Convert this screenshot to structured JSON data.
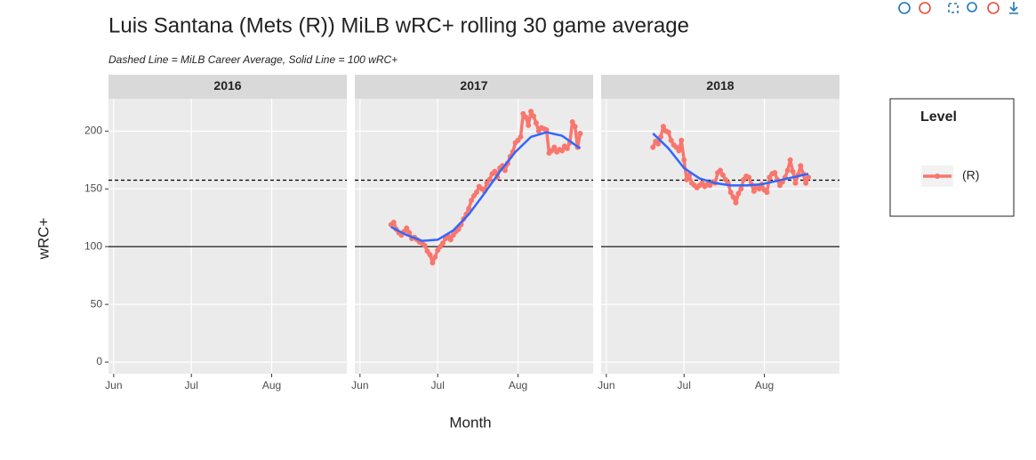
{
  "chart_data": {
    "type": "line",
    "title": "Luis Santana (Mets (R)) MiLB wRC+ rolling 30 game average",
    "subtitle": "Dashed Line = MiLB Career Average, Solid Line = 100 wRC+",
    "x_label": "Month",
    "y_label": "wRC+",
    "xlim": [
      -2,
      90
    ],
    "xticks": [
      {
        "value": 0,
        "label": "Jun"
      },
      {
        "value": 30,
        "label": "Jul"
      },
      {
        "value": 61,
        "label": "Aug"
      }
    ],
    "ylim": [
      -10,
      228
    ],
    "yticks": [
      0,
      50,
      100,
      150,
      200
    ],
    "grid": true,
    "hlines": [
      {
        "value": 157.5,
        "style": "dashed"
      },
      {
        "value": 100,
        "style": "solid"
      }
    ],
    "legend": {
      "title": "Level",
      "position": "right",
      "entries": [
        {
          "name": "(R)",
          "color": "#f8766d"
        }
      ]
    },
    "facets": [
      {
        "label": "2016",
        "series": []
      },
      {
        "label": "2017",
        "series": [
          {
            "color": "#f8766d",
            "points": true,
            "x": [
              12,
              13,
              14,
              15,
              16,
              17,
              18,
              19,
              20,
              21,
              22,
              23,
              24,
              25,
              26,
              27,
              28,
              29,
              30,
              31,
              32,
              33,
              34,
              35,
              36,
              37,
              38,
              39,
              40,
              41,
              42,
              43,
              44,
              45,
              46,
              47,
              48,
              49,
              50,
              51,
              52,
              53,
              54,
              55,
              56,
              57,
              58,
              59,
              60,
              61,
              62,
              63,
              64,
              65,
              66,
              67,
              68,
              69,
              70,
              71,
              72,
              73,
              74,
              75,
              76,
              77,
              78,
              79,
              80,
              81,
              82,
              83,
              84,
              85
            ],
            "values": [
              119,
              121,
              115,
              112,
              110,
              113,
              116,
              112,
              107,
              108,
              106,
              104,
              103,
              101,
              96,
              93,
              86,
              91,
              97,
              100,
              103,
              107,
              109,
              106,
              110,
              113,
              115,
              119,
              124,
              128,
              133,
              140,
              144,
              147,
              152,
              150,
              148,
              155,
              158,
              163,
              165,
              160,
              168,
              170,
              166,
              172,
              178,
              182,
              190,
              192,
              195,
              215,
              212,
              205,
              217,
              213,
              207,
              200,
              203,
              202,
              201,
              181,
              183,
              186,
              182,
              184,
              183,
              187,
              185,
              190,
              208,
              204,
              186,
              198
            ]
          },
          {
            "color": "#3366ff",
            "points": false,
            "x": [
              12,
              18,
              24,
              30,
              36,
              42,
              48,
              54,
              60,
              66,
              72,
              78,
              85
            ],
            "values": [
              117,
              110,
              105,
              106,
              114,
              128,
              146,
              165,
              182,
              195,
              199,
              196,
              185
            ]
          }
        ]
      },
      {
        "label": "2018",
        "series": [
          {
            "color": "#f8766d",
            "points": true,
            "x": [
              18,
              19,
              20,
              21,
              22,
              23,
              24,
              25,
              26,
              27,
              28,
              29,
              30,
              31,
              32,
              33,
              34,
              35,
              36,
              37,
              38,
              39,
              40,
              41,
              42,
              43,
              44,
              45,
              46,
              47,
              48,
              49,
              50,
              51,
              52,
              53,
              54,
              55,
              56,
              57,
              58,
              59,
              60,
              61,
              62,
              63,
              64,
              65,
              66,
              67,
              68,
              69,
              70,
              71,
              72,
              73,
              74,
              75,
              76,
              77,
              78
            ],
            "values": [
              186,
              191,
              189,
              195,
              204,
              200,
              199,
              192,
              188,
              186,
              183,
              192,
              175,
              158,
              162,
              155,
              153,
              151,
              153,
              155,
              152,
              154,
              153,
              156,
              155,
              164,
              166,
              162,
              158,
              155,
              147,
              143,
              138,
              146,
              150,
              158,
              161,
              160,
              154,
              148,
              152,
              150,
              154,
              149,
              147,
              160,
              163,
              164,
              158,
              153,
              156,
              160,
              166,
              175,
              165,
              155,
              162,
              170,
              163,
              155,
              160
            ]
          },
          {
            "color": "#3366ff",
            "points": false,
            "x": [
              18,
              24,
              30,
              36,
              42,
              48,
              54,
              60,
              66,
              72,
              78
            ],
            "values": [
              198,
              185,
              168,
              159,
              155,
              153,
              153,
              154,
              157,
              160,
              163
            ]
          }
        ]
      }
    ]
  }
}
